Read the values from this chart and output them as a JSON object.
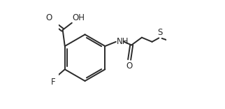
{
  "bg_color": "#ffffff",
  "line_color": "#2a2a2a",
  "text_color": "#2a2a2a",
  "line_width": 1.4,
  "font_size": 8.5,
  "figsize": [
    3.22,
    1.56
  ],
  "dpi": 100,
  "xlim": [
    0.0,
    1.0
  ],
  "ylim": [
    0.0,
    1.0
  ]
}
